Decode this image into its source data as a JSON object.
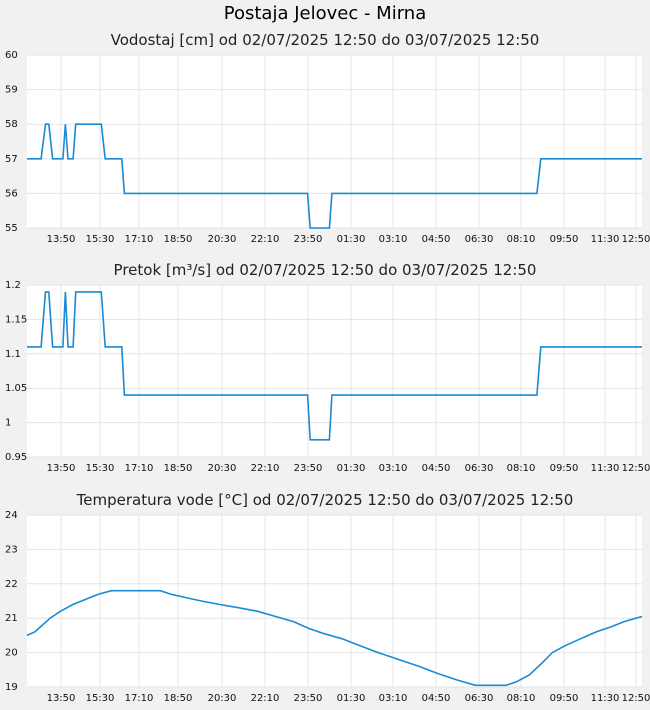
{
  "page_title": "Postaja Jelovec - Mirna",
  "chart_data": [
    {
      "type": "line",
      "title": "Vodostaj [cm] od 02/07/2025 12:50 do 03/07/2025 12:50",
      "x_ticks": [
        "13:50",
        "15:30",
        "17:10",
        "18:50",
        "20:30",
        "22:10",
        "23:50",
        "01:30",
        "03:10",
        "04:50",
        "06:30",
        "08:10",
        "09:50",
        "11:30",
        "12:50"
      ],
      "y_ticks": [
        "55",
        "56",
        "57",
        "58",
        "59",
        "60"
      ],
      "ylim": [
        55,
        60
      ],
      "xlim_hours": [
        0,
        24
      ],
      "series": [
        {
          "color": "#1a8ad4",
          "points": [
            [
              0,
              57
            ],
            [
              0.55,
              57
            ],
            [
              0.72,
              58
            ],
            [
              0.85,
              58
            ],
            [
              1.0,
              57
            ],
            [
              1.4,
              57
            ],
            [
              1.5,
              58
            ],
            [
              1.6,
              57
            ],
            [
              1.8,
              57
            ],
            [
              1.9,
              58
            ],
            [
              2.9,
              58
            ],
            [
              3.05,
              57
            ],
            [
              3.7,
              57
            ],
            [
              3.8,
              56
            ],
            [
              10.95,
              56
            ],
            [
              11.05,
              55
            ],
            [
              11.8,
              55
            ],
            [
              11.9,
              56
            ],
            [
              19.9,
              56
            ],
            [
              20.05,
              57
            ],
            [
              24,
              57
            ]
          ]
        }
      ]
    },
    {
      "type": "line",
      "title": "Pretok [m³/s] od 02/07/2025 12:50 do 03/07/2025 12:50",
      "x_ticks": [
        "13:50",
        "15:30",
        "17:10",
        "18:50",
        "20:30",
        "22:10",
        "23:50",
        "01:30",
        "03:10",
        "04:50",
        "06:30",
        "08:10",
        "09:50",
        "11:30",
        "12:50"
      ],
      "y_ticks": [
        "0.95",
        "1",
        "1.05",
        "1.1",
        "1.15",
        "1.2"
      ],
      "ylim": [
        0.95,
        1.2
      ],
      "xlim_hours": [
        0,
        24
      ],
      "series": [
        {
          "color": "#1a8ad4",
          "points": [
            [
              0,
              1.11
            ],
            [
              0.55,
              1.11
            ],
            [
              0.72,
              1.19
            ],
            [
              0.85,
              1.19
            ],
            [
              1.0,
              1.11
            ],
            [
              1.4,
              1.11
            ],
            [
              1.5,
              1.19
            ],
            [
              1.6,
              1.11
            ],
            [
              1.8,
              1.11
            ],
            [
              1.9,
              1.19
            ],
            [
              2.9,
              1.19
            ],
            [
              3.05,
              1.11
            ],
            [
              3.7,
              1.11
            ],
            [
              3.8,
              1.04
            ],
            [
              10.95,
              1.04
            ],
            [
              11.05,
              0.975
            ],
            [
              11.8,
              0.975
            ],
            [
              11.9,
              1.04
            ],
            [
              19.9,
              1.04
            ],
            [
              20.05,
              1.11
            ],
            [
              24,
              1.11
            ]
          ]
        }
      ]
    },
    {
      "type": "line",
      "title": "Temperatura vode [°C] od 02/07/2025 12:50 do 03/07/2025 12:50",
      "x_ticks": [
        "13:50",
        "15:30",
        "17:10",
        "18:50",
        "20:30",
        "22:10",
        "23:50",
        "01:30",
        "03:10",
        "04:50",
        "06:30",
        "08:10",
        "09:50",
        "11:30",
        "12:50"
      ],
      "y_ticks": [
        "19",
        "20",
        "21",
        "22",
        "23",
        "24"
      ],
      "ylim": [
        19,
        24
      ],
      "xlim_hours": [
        0,
        24
      ],
      "series": [
        {
          "color": "#1a8ad4",
          "points": [
            [
              0,
              20.5
            ],
            [
              0.3,
              20.6
            ],
            [
              0.6,
              20.8
            ],
            [
              0.9,
              21.0
            ],
            [
              1.3,
              21.2
            ],
            [
              1.8,
              21.4
            ],
            [
              2.3,
              21.55
            ],
            [
              2.8,
              21.7
            ],
            [
              3.3,
              21.8
            ],
            [
              5.2,
              21.8
            ],
            [
              5.6,
              21.7
            ],
            [
              6.2,
              21.6
            ],
            [
              6.8,
              21.5
            ],
            [
              7.5,
              21.4
            ],
            [
              8.3,
              21.3
            ],
            [
              9.0,
              21.2
            ],
            [
              9.7,
              21.05
            ],
            [
              10.4,
              20.9
            ],
            [
              11.0,
              20.7
            ],
            [
              11.6,
              20.55
            ],
            [
              12.3,
              20.4
            ],
            [
              13.0,
              20.2
            ],
            [
              13.7,
              20.0
            ],
            [
              14.5,
              19.8
            ],
            [
              15.3,
              19.6
            ],
            [
              16.0,
              19.4
            ],
            [
              16.8,
              19.2
            ],
            [
              17.5,
              19.05
            ],
            [
              18.7,
              19.05
            ],
            [
              19.1,
              19.15
            ],
            [
              19.6,
              19.35
            ],
            [
              20.1,
              19.7
            ],
            [
              20.5,
              20.0
            ],
            [
              21.0,
              20.2
            ],
            [
              21.6,
              20.4
            ],
            [
              22.2,
              20.6
            ],
            [
              22.8,
              20.75
            ],
            [
              23.3,
              20.9
            ],
            [
              24,
              21.05
            ]
          ]
        }
      ]
    }
  ]
}
